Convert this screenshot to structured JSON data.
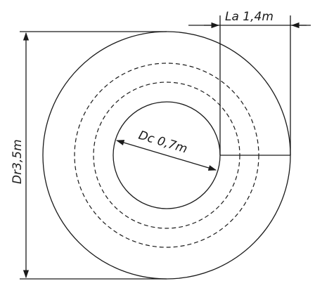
{
  "labels": {
    "outer_diameter": "Dr3,5m",
    "inner_diameter": "Dc 0,7m",
    "annulus_width": "La 1,4m"
  },
  "colors": {
    "line": "#1a1a1a",
    "background": "#ffffff"
  }
}
